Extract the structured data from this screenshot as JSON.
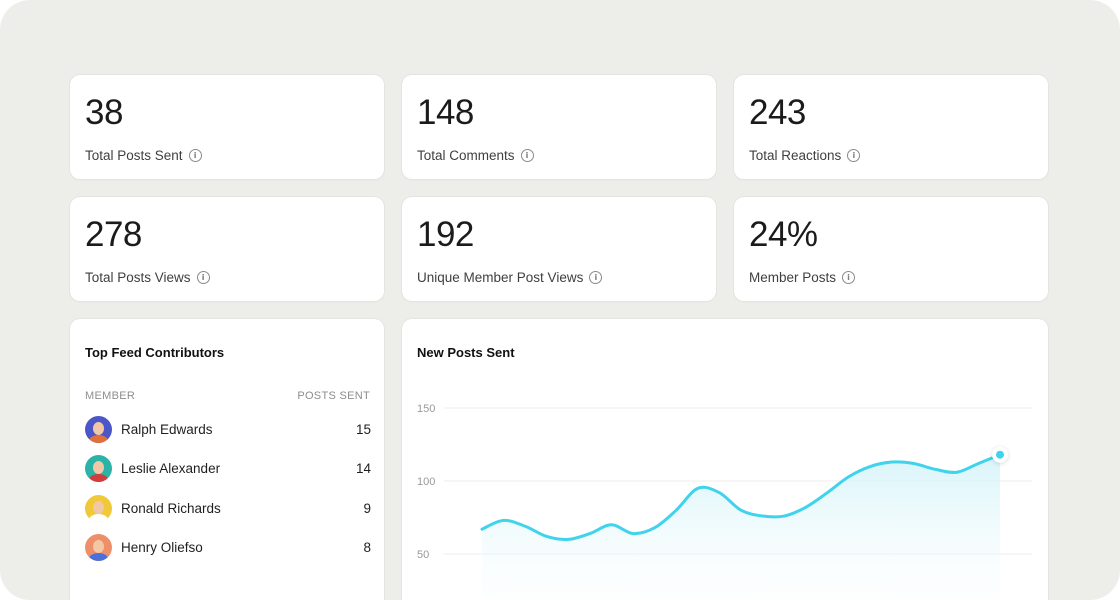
{
  "stats": [
    {
      "value": "38",
      "label": "Total Posts Sent"
    },
    {
      "value": "148",
      "label": "Total Comments"
    },
    {
      "value": "243",
      "label": "Total Reactions"
    },
    {
      "value": "278",
      "label": "Total Posts Views"
    },
    {
      "value": "192",
      "label": "Unique Member Post Views"
    },
    {
      "value": "24%",
      "label": "Member Posts"
    }
  ],
  "contributors": {
    "title": "Top Feed Contributors",
    "col_member": "MEMBER",
    "col_posts": "POSTS SENT",
    "rows": [
      {
        "name": "Ralph Edwards",
        "count": "15",
        "bg": "#4b56c9",
        "shirt": "#e0713c"
      },
      {
        "name": "Leslie Alexander",
        "count": "14",
        "bg": "#2bb3a8",
        "shirt": "#d23c3c"
      },
      {
        "name": "Ronald Richards",
        "count": "9",
        "bg": "#f0c93a",
        "shirt": "#ffffff"
      },
      {
        "name": "Henry Oliefso",
        "count": "8",
        "bg": "#ef8f6a",
        "shirt": "#4d6fd9"
      }
    ]
  },
  "chart_panel": {
    "title": "New Posts Sent"
  },
  "chart_data": {
    "type": "area",
    "title": "New Posts Sent",
    "y_ticks": [
      "150",
      "100",
      "50"
    ],
    "ylim": [
      50,
      150
    ],
    "y": [
      67,
      73,
      69,
      62,
      60,
      64,
      70,
      64,
      68,
      80,
      95,
      92,
      80,
      76,
      76,
      82,
      92,
      103,
      110,
      113,
      112,
      108,
      106,
      112,
      118
    ],
    "grid": true,
    "line_color": "#3fd3ec",
    "fill_color": "#d9f4f9"
  },
  "colors": {
    "page_bg": "#edeeea",
    "card_bg": "#ffffff",
    "accent": "#3fd3ec"
  }
}
